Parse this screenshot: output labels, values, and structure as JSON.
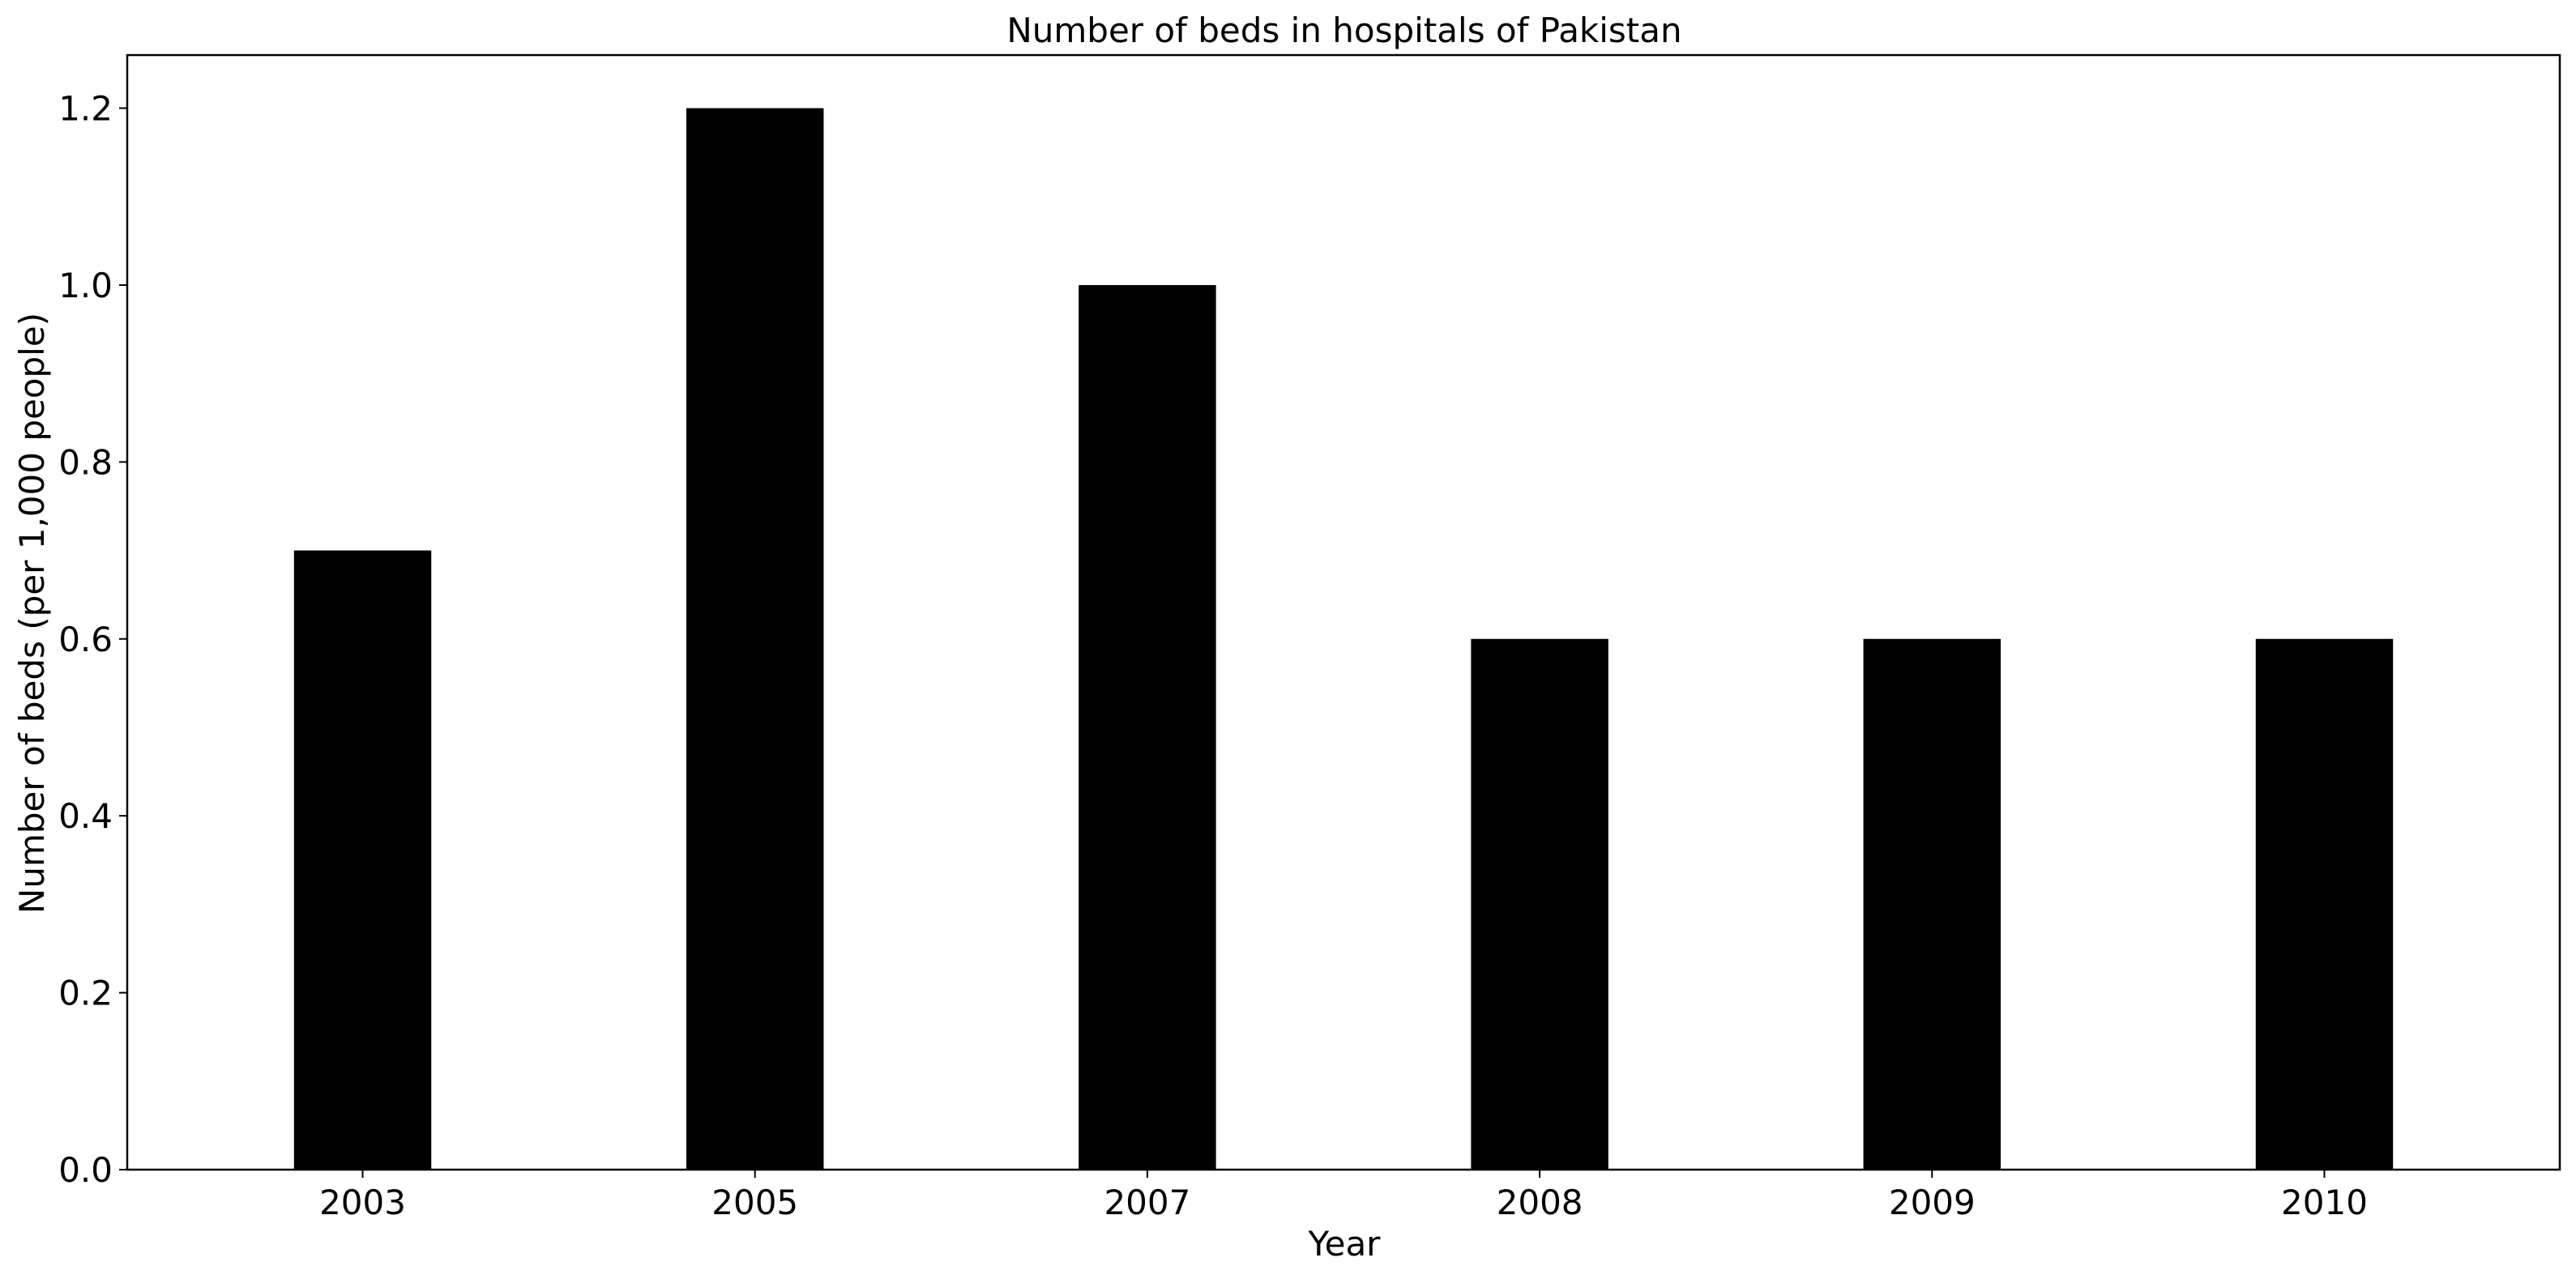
{
  "chart_data": {
    "type": "bar",
    "title": "Number of beds in hospitals of Pakistan",
    "xlabel": "Year",
    "ylabel": "Number of beds (per 1,000 people)",
    "categories": [
      "2003",
      "2005",
      "2007",
      "2008",
      "2009",
      "2010"
    ],
    "values": [
      0.7,
      1.2,
      1.0,
      0.6,
      0.6,
      0.6
    ],
    "ylim": [
      0,
      1.26
    ],
    "yticks": [
      0.0,
      0.2,
      0.4,
      0.6,
      0.8,
      1.0,
      1.2
    ],
    "ytick_labels": [
      "0.0",
      "0.2",
      "0.4",
      "0.6",
      "0.8",
      "1.0",
      "1.2"
    ],
    "bar_color": "#000000",
    "grid": false,
    "legend": "none"
  }
}
